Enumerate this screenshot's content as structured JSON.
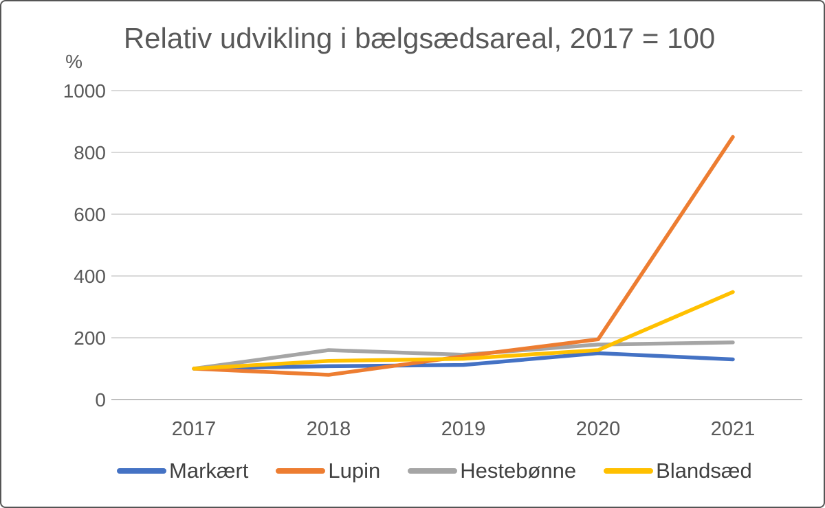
{
  "chart_data": {
    "type": "line",
    "title": "Relativ udvikling i bælgsædsareal, 2017 = 100",
    "ylabel": "%",
    "xlabel": "",
    "categories": [
      "2017",
      "2018",
      "2019",
      "2020",
      "2021"
    ],
    "y_ticks": [
      0,
      200,
      400,
      600,
      800,
      1000
    ],
    "ylim": [
      0,
      1000
    ],
    "grid": true,
    "legend_position": "bottom",
    "series": [
      {
        "name": "Markært",
        "color": "#4472C4",
        "values": [
          100,
          108,
          112,
          150,
          130
        ]
      },
      {
        "name": "Lupin",
        "color": "#ED7D31",
        "values": [
          100,
          80,
          140,
          195,
          850
        ]
      },
      {
        "name": "Hestebønne",
        "color": "#A5A5A5",
        "values": [
          100,
          160,
          145,
          178,
          185
        ]
      },
      {
        "name": "Blandsæd",
        "color": "#FFC000",
        "values": [
          100,
          125,
          132,
          160,
          348
        ]
      }
    ]
  },
  "styles": {
    "title_color": "#595959",
    "tick_color": "#595959",
    "legend_text_color": "#404040",
    "gridline_color": "#D9D9D9",
    "axis_line_color": "#BFBFBF",
    "background": "#FFFFFF"
  }
}
